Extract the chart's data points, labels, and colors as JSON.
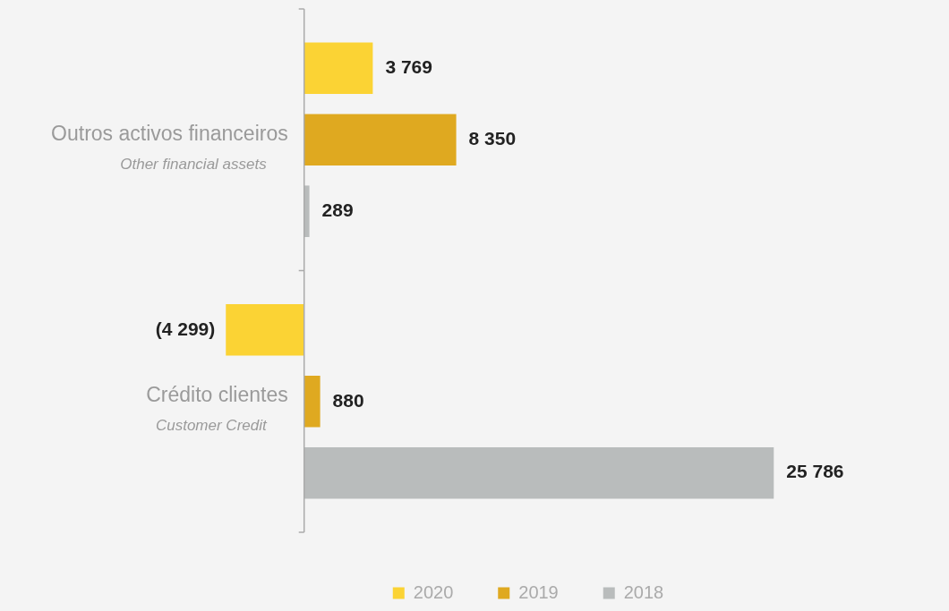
{
  "chart_data": {
    "type": "bar",
    "orientation": "horizontal",
    "categories": [
      "Outros activos financeiros\nOther financial assets",
      "Crédito clientes\nCustomer Credit"
    ],
    "series": [
      {
        "name": "2020",
        "color": "#fbd334",
        "values": [
          3769,
          -4299
        ],
        "value_labels": [
          "3 769",
          "(4 299)"
        ]
      },
      {
        "name": "2019",
        "color": "#dfa920",
        "values": [
          8350,
          880
        ],
        "value_labels": [
          "8 350",
          "880"
        ]
      },
      {
        "name": "2018",
        "color": "#b9bcbc",
        "values": [
          289,
          25786
        ],
        "value_labels": [
          "289",
          "25 786"
        ]
      }
    ],
    "grid": false,
    "legend": "bottom"
  }
}
